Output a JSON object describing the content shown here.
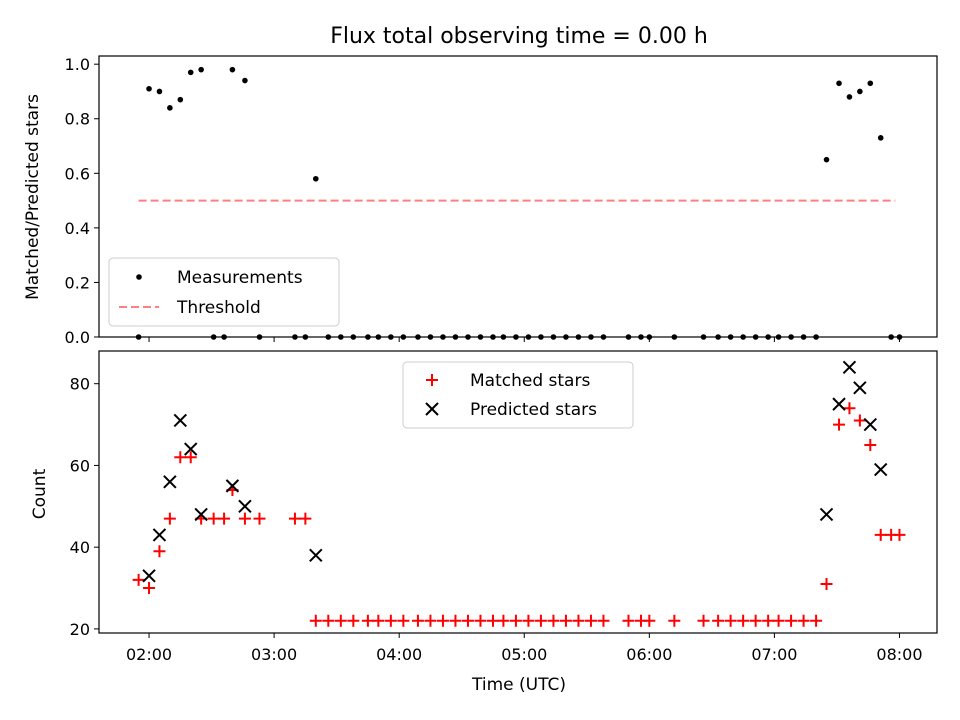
{
  "figure": {
    "title": "Flux total observing time = 0.00 h",
    "xlabel": "Time (UTC)"
  },
  "colors": {
    "measurement": "#000000",
    "threshold": "#ff7f7f",
    "matched": "#ff0000",
    "predicted": "#000000"
  },
  "chart_data": [
    {
      "type": "scatter",
      "panel": "top",
      "title": "Flux total observing time = 0.00 h",
      "xlabel": "",
      "ylabel": "Matched/Predicted stars",
      "xlim_hours": [
        1.6,
        8.3
      ],
      "ylim": [
        0,
        1.03
      ],
      "yticks": [
        0.0,
        0.2,
        0.4,
        0.6,
        0.8,
        1.0
      ],
      "ytick_labels": [
        "0.0",
        "0.2",
        "0.4",
        "0.6",
        "0.8",
        "1.0"
      ],
      "xticks_hours": [
        2,
        3,
        4,
        5,
        6,
        7,
        8
      ],
      "legend_position": "lower-left",
      "legend": [
        "Measurements",
        "Threshold"
      ],
      "series": [
        {
          "name": "Measurements",
          "marker": "dot",
          "x": [
            "01:55",
            "02:00",
            "02:05",
            "02:10",
            "02:15",
            "02:20",
            "02:25",
            "02:31",
            "02:36",
            "02:40",
            "02:46",
            "02:53",
            "03:10",
            "03:15",
            "03:20",
            "03:26",
            "03:32",
            "03:38",
            "03:45",
            "03:50",
            "03:56",
            "04:02",
            "04:09",
            "04:15",
            "04:21",
            "04:27",
            "04:33",
            "04:39",
            "04:45",
            "04:50",
            "04:56",
            "05:02",
            "05:08",
            "05:14",
            "05:20",
            "05:26",
            "05:32",
            "05:38",
            "05:50",
            "05:56",
            "06:00",
            "06:12",
            "06:26",
            "06:33",
            "06:39",
            "06:45",
            "06:51",
            "06:57",
            "07:02",
            "07:08",
            "07:14",
            "07:20",
            "07:25",
            "07:31",
            "07:36",
            "07:41",
            "07:46",
            "07:51",
            "07:56",
            "08:00"
          ],
          "y": [
            0.0,
            0.91,
            0.9,
            0.84,
            0.87,
            0.97,
            0.98,
            0.0,
            0.0,
            0.98,
            0.94,
            0.0,
            0.0,
            0.0,
            0.58,
            0.0,
            0.0,
            0.0,
            0.0,
            0.0,
            0.0,
            0.0,
            0.0,
            0.0,
            0.0,
            0.0,
            0.0,
            0.0,
            0.0,
            0.0,
            0.0,
            0.0,
            0.0,
            0.0,
            0.0,
            0.0,
            0.0,
            0.0,
            0.0,
            0.0,
            0.0,
            0.0,
            0.0,
            0.0,
            0.0,
            0.0,
            0.0,
            0.0,
            0.0,
            0.0,
            0.0,
            0.0,
            0.65,
            0.93,
            0.88,
            0.9,
            0.93,
            0.73,
            0.0,
            0.0
          ]
        },
        {
          "name": "Threshold",
          "marker": "dashed-line",
          "x": [
            "01:55",
            "07:58"
          ],
          "y": [
            0.5,
            0.5
          ]
        }
      ]
    },
    {
      "type": "scatter",
      "panel": "bottom",
      "xlabel": "Time (UTC)",
      "ylabel": "Count",
      "xlim_hours": [
        1.6,
        8.3
      ],
      "ylim": [
        19,
        88
      ],
      "yticks": [
        20,
        40,
        60,
        80
      ],
      "ytick_labels": [
        "20",
        "40",
        "60",
        "80"
      ],
      "xticks_hours": [
        2,
        3,
        4,
        5,
        6,
        7,
        8
      ],
      "xtick_labels": [
        "02:00",
        "03:00",
        "04:00",
        "05:00",
        "06:00",
        "07:00",
        "08:00"
      ],
      "legend_position": "upper-center",
      "legend": [
        "Matched stars",
        "Predicted stars"
      ],
      "series": [
        {
          "name": "Matched stars",
          "marker": "plus",
          "x": [
            "01:55",
            "02:00",
            "02:05",
            "02:10",
            "02:15",
            "02:20",
            "02:25",
            "02:31",
            "02:36",
            "02:40",
            "02:46",
            "02:53",
            "03:10",
            "03:15",
            "03:20",
            "03:26",
            "03:32",
            "03:38",
            "03:45",
            "03:50",
            "03:56",
            "04:02",
            "04:09",
            "04:15",
            "04:21",
            "04:27",
            "04:33",
            "04:39",
            "04:45",
            "04:50",
            "04:56",
            "05:02",
            "05:08",
            "05:14",
            "05:20",
            "05:26",
            "05:32",
            "05:38",
            "05:50",
            "05:56",
            "06:00",
            "06:12",
            "06:26",
            "06:33",
            "06:39",
            "06:45",
            "06:51",
            "06:57",
            "07:02",
            "07:08",
            "07:14",
            "07:20",
            "07:25",
            "07:31",
            "07:36",
            "07:41",
            "07:46",
            "07:51",
            "07:56",
            "08:00"
          ],
          "y": [
            32,
            30,
            39,
            47,
            62,
            62,
            47,
            47,
            47,
            54,
            47,
            47,
            47,
            47,
            22,
            22,
            22,
            22,
            22,
            22,
            22,
            22,
            22,
            22,
            22,
            22,
            22,
            22,
            22,
            22,
            22,
            22,
            22,
            22,
            22,
            22,
            22,
            22,
            22,
            22,
            22,
            22,
            22,
            22,
            22,
            22,
            22,
            22,
            22,
            22,
            22,
            22,
            31,
            70,
            74,
            71,
            65,
            43,
            43,
            43
          ]
        },
        {
          "name": "Predicted stars",
          "marker": "x",
          "x": [
            "02:00",
            "02:05",
            "02:10",
            "02:15",
            "02:20",
            "02:25",
            "02:40",
            "02:46",
            "03:20",
            "07:25",
            "07:31",
            "07:36",
            "07:41",
            "07:46",
            "07:51"
          ],
          "y": [
            33,
            43,
            56,
            71,
            64,
            48,
            55,
            50,
            38,
            48,
            75,
            84,
            79,
            70,
            59
          ]
        }
      ]
    }
  ]
}
